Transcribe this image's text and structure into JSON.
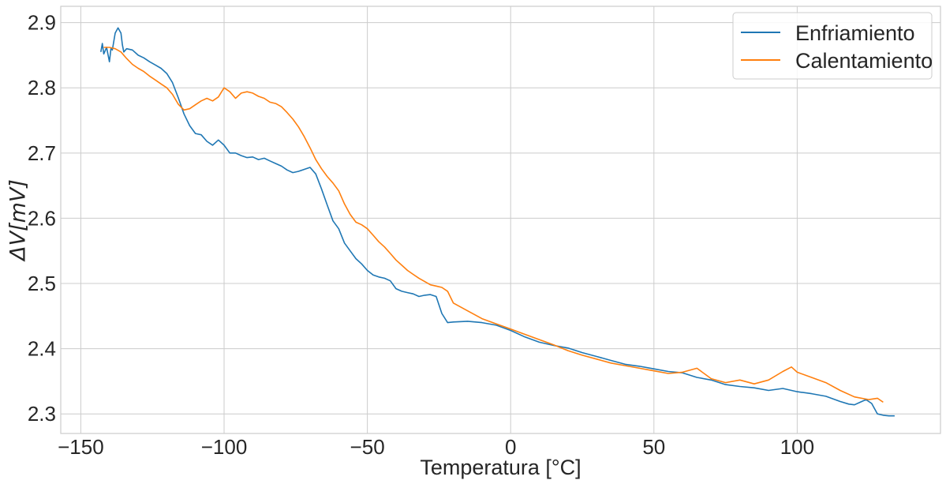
{
  "chart_data": {
    "type": "line",
    "title": "",
    "xlabel": "Temperatura [°C]",
    "ylabel": "ΔV[mV]",
    "xlim": [
      -157,
      150
    ],
    "ylim": [
      2.27,
      2.925
    ],
    "xticks": [
      -150,
      -100,
      -50,
      0,
      50,
      100
    ],
    "xtick_labels": [
      "−150",
      "−100",
      "−50",
      "0",
      "50",
      "100"
    ],
    "yticks": [
      2.3,
      2.4,
      2.5,
      2.6,
      2.7,
      2.8,
      2.9
    ],
    "ytick_labels": [
      "2.3",
      "2.4",
      "2.5",
      "2.6",
      "2.7",
      "2.8",
      "2.9"
    ],
    "grid": true,
    "legend_position": "top-right",
    "series": [
      {
        "name": "Enfriamiento",
        "color": "#1f77b4",
        "x": [
          -143,
          -142.5,
          -142,
          -141,
          -140,
          -139.5,
          -139,
          -138,
          -137,
          -136,
          -135.5,
          -135,
          -134,
          -132,
          -130,
          -128,
          -126,
          -124,
          -122,
          -120,
          -118,
          -116,
          -114,
          -112,
          -110,
          -108,
          -106,
          -104,
          -102,
          -100,
          -98,
          -96,
          -94,
          -92,
          -90,
          -88,
          -86,
          -84,
          -82,
          -80,
          -78,
          -76,
          -74,
          -72,
          -70,
          -68,
          -66,
          -64,
          -62,
          -60,
          -58,
          -56,
          -54,
          -52,
          -50,
          -48,
          -46,
          -44,
          -42,
          -40,
          -38,
          -36,
          -34,
          -32,
          -30,
          -28,
          -26,
          -24,
          -22,
          -20,
          -15,
          -10,
          -5,
          0,
          5,
          10,
          15,
          20,
          25,
          30,
          35,
          40,
          45,
          50,
          55,
          60,
          65,
          70,
          75,
          80,
          85,
          90,
          95,
          100,
          105,
          110,
          115,
          118,
          120,
          122,
          124,
          126,
          128,
          130,
          132,
          134
        ],
        "y": [
          2.855,
          2.868,
          2.852,
          2.862,
          2.84,
          2.86,
          2.858,
          2.884,
          2.892,
          2.884,
          2.866,
          2.855,
          2.86,
          2.858,
          2.85,
          2.846,
          2.84,
          2.835,
          2.83,
          2.822,
          2.808,
          2.785,
          2.76,
          2.742,
          2.73,
          2.728,
          2.718,
          2.712,
          2.72,
          2.712,
          2.7,
          2.7,
          2.696,
          2.693,
          2.694,
          2.69,
          2.692,
          2.688,
          2.684,
          2.68,
          2.674,
          2.67,
          2.672,
          2.675,
          2.678,
          2.668,
          2.645,
          2.62,
          2.596,
          2.584,
          2.562,
          2.55,
          2.538,
          2.53,
          2.52,
          2.513,
          2.51,
          2.508,
          2.504,
          2.492,
          2.488,
          2.486,
          2.484,
          2.48,
          2.482,
          2.483,
          2.48,
          2.454,
          2.44,
          2.441,
          2.442,
          2.44,
          2.436,
          2.428,
          2.418,
          2.41,
          2.405,
          2.401,
          2.394,
          2.388,
          2.382,
          2.376,
          2.373,
          2.369,
          2.365,
          2.363,
          2.356,
          2.352,
          2.345,
          2.342,
          2.34,
          2.336,
          2.339,
          2.334,
          2.331,
          2.327,
          2.319,
          2.315,
          2.314,
          2.318,
          2.322,
          2.316,
          2.3,
          2.298,
          2.297,
          2.297
        ]
      },
      {
        "name": "Calentamiento",
        "color": "#ff7f0e",
        "x": [
          -142,
          -140,
          -138,
          -136,
          -134,
          -132,
          -130,
          -128,
          -126,
          -124,
          -122,
          -120,
          -118,
          -116,
          -114,
          -112,
          -110,
          -108,
          -106,
          -104,
          -102,
          -100,
          -98,
          -96,
          -94,
          -92,
          -90,
          -88,
          -86,
          -84,
          -82,
          -80,
          -78,
          -76,
          -74,
          -72,
          -70,
          -68,
          -66,
          -64,
          -62,
          -60,
          -58,
          -56,
          -54,
          -52,
          -50,
          -48,
          -46,
          -44,
          -42,
          -40,
          -38,
          -36,
          -34,
          -32,
          -30,
          -28,
          -26,
          -24,
          -22,
          -20,
          -15,
          -10,
          -5,
          0,
          5,
          10,
          15,
          20,
          25,
          30,
          35,
          40,
          45,
          50,
          55,
          60,
          65,
          70,
          75,
          80,
          85,
          90,
          95,
          98,
          100,
          105,
          110,
          115,
          120,
          125,
          128,
          130
        ],
        "y": [
          2.862,
          2.862,
          2.86,
          2.855,
          2.845,
          2.836,
          2.83,
          2.825,
          2.818,
          2.812,
          2.806,
          2.8,
          2.79,
          2.775,
          2.766,
          2.768,
          2.774,
          2.78,
          2.784,
          2.78,
          2.786,
          2.8,
          2.794,
          2.784,
          2.792,
          2.794,
          2.792,
          2.787,
          2.784,
          2.778,
          2.776,
          2.771,
          2.762,
          2.752,
          2.74,
          2.725,
          2.708,
          2.69,
          2.676,
          2.664,
          2.654,
          2.642,
          2.622,
          2.606,
          2.594,
          2.59,
          2.584,
          2.574,
          2.564,
          2.556,
          2.546,
          2.536,
          2.528,
          2.52,
          2.514,
          2.508,
          2.503,
          2.498,
          2.496,
          2.494,
          2.488,
          2.47,
          2.458,
          2.446,
          2.438,
          2.43,
          2.422,
          2.414,
          2.406,
          2.397,
          2.39,
          2.384,
          2.378,
          2.374,
          2.37,
          2.366,
          2.362,
          2.364,
          2.37,
          2.354,
          2.348,
          2.352,
          2.346,
          2.352,
          2.365,
          2.372,
          2.364,
          2.356,
          2.348,
          2.336,
          2.326,
          2.322,
          2.324,
          2.318
        ]
      }
    ]
  }
}
